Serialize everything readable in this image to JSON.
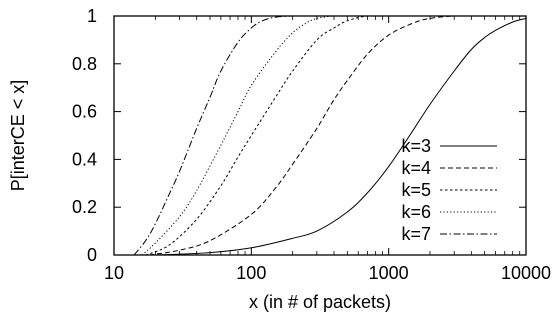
{
  "chart_data": {
    "type": "line",
    "xlabel": "x (in # of packets)",
    "ylabel": "P[interCE < x]",
    "xscale": "log",
    "xlim": [
      10,
      10000
    ],
    "ylim": [
      0,
      1
    ],
    "xticks": [
      10,
      100,
      1000,
      10000
    ],
    "xtick_labels": [
      "10",
      "100",
      "1000",
      "10000"
    ],
    "yticks": [
      0,
      0.2,
      0.4,
      0.6,
      0.8,
      1
    ],
    "ytick_labels": [
      "0",
      "0.2",
      "0.4",
      "0.6",
      "0.8",
      "1"
    ],
    "grid": false,
    "legend_position": "right",
    "series": [
      {
        "name": "k=3",
        "dash": "solid",
        "x": [
          20,
          50,
          100,
          200,
          300,
          500,
          700,
          1000,
          1500,
          2000,
          3000,
          4000,
          5000,
          6000,
          8000,
          10000
        ],
        "y": [
          0.0,
          0.01,
          0.03,
          0.07,
          0.1,
          0.18,
          0.26,
          0.37,
          0.52,
          0.63,
          0.77,
          0.86,
          0.91,
          0.94,
          0.975,
          0.99
        ]
      },
      {
        "name": "k=4",
        "dash": "dashed",
        "x": [
          18,
          30,
          50,
          100,
          150,
          200,
          300,
          400,
          500,
          700,
          1000,
          1500,
          2000,
          3000,
          4000
        ],
        "y": [
          0.0,
          0.02,
          0.06,
          0.17,
          0.28,
          0.38,
          0.53,
          0.65,
          0.73,
          0.84,
          0.92,
          0.97,
          0.99,
          1.0,
          1.0
        ]
      },
      {
        "name": "k=5",
        "dash": "dotted-dash",
        "x": [
          17,
          25,
          40,
          60,
          80,
          100,
          150,
          200,
          300,
          400,
          500,
          700,
          1000
        ],
        "y": [
          0.0,
          0.04,
          0.15,
          0.29,
          0.41,
          0.5,
          0.66,
          0.77,
          0.9,
          0.95,
          0.98,
          1.0,
          1.0
        ]
      },
      {
        "name": "k=6",
        "dash": "dotted",
        "x": [
          16,
          20,
          30,
          40,
          60,
          80,
          100,
          150,
          200,
          250,
          300,
          400,
          500
        ],
        "y": [
          0.0,
          0.05,
          0.16,
          0.27,
          0.46,
          0.6,
          0.71,
          0.85,
          0.93,
          0.97,
          0.99,
          1.0,
          1.0
        ]
      },
      {
        "name": "k=7",
        "dash": "dash-dot",
        "x": [
          14,
          17,
          20,
          25,
          30,
          40,
          50,
          60,
          80,
          100,
          120,
          150,
          200,
          250
        ],
        "y": [
          0.0,
          0.06,
          0.13,
          0.25,
          0.35,
          0.53,
          0.66,
          0.77,
          0.89,
          0.95,
          0.98,
          0.995,
          1.0,
          1.0
        ]
      }
    ]
  }
}
